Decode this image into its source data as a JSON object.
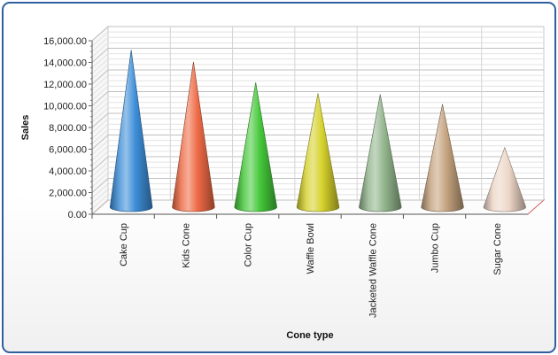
{
  "chart_data": {
    "type": "bar",
    "subtype": "3d-cone",
    "title": "",
    "xlabel": "Cone type",
    "ylabel": "Sales",
    "categories": [
      "Cake Cup",
      "Kids Cone",
      "Color Cup",
      "Waffle Bowl",
      "Jacketed Waffle Cone",
      "Jumbo Cup",
      "Sugar Cone"
    ],
    "values": [
      14500,
      13400,
      11500,
      10500,
      10400,
      9500,
      5500
    ],
    "ylim": [
      0,
      16000
    ],
    "yticks": [
      "0.00",
      "2,000.00",
      "4,000.00",
      "6,000.00",
      "8,000.00",
      "10,000.00",
      "12,000.00",
      "14,000.00",
      "16,000.00"
    ],
    "grid": true,
    "legend": "none",
    "colors": [
      "#3d8ed8",
      "#ee6a45",
      "#45c83a",
      "#d6d12c",
      "#92b58c",
      "#c4a27e",
      "#edd6c6"
    ]
  }
}
